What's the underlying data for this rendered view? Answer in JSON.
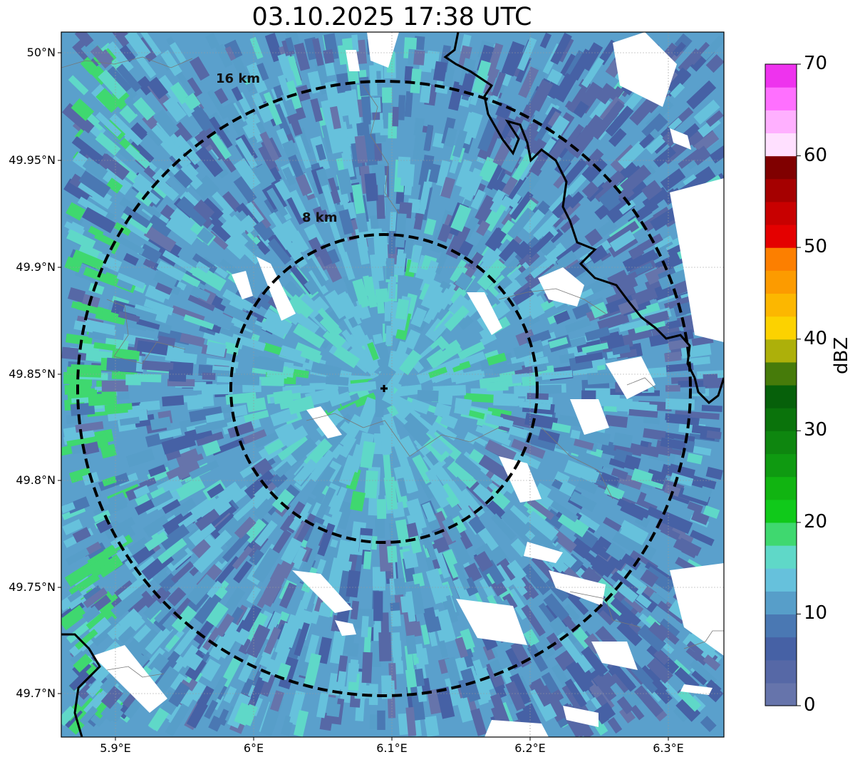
{
  "title": "03.10.2025 17:38 UTC",
  "map": {
    "y_ticks": [
      "50°N",
      "49.95°N",
      "49.9°N",
      "49.85°N",
      "49.8°N",
      "49.75°N",
      "49.7°N"
    ],
    "x_ticks": [
      "5.9°E",
      "6°E",
      "6.1°E",
      "6.2°E",
      "6.3°E"
    ],
    "lon_range": [
      5.86,
      6.34
    ],
    "lat_range": [
      49.68,
      50.01
    ],
    "radar_site": {
      "lon": 6.1,
      "lat": 49.843
    },
    "range_rings": [
      {
        "label": "8 km",
        "radius_km": 8
      },
      {
        "label": "16 km",
        "radius_km": 16
      }
    ]
  },
  "colorbar": {
    "label": "dBZ",
    "ticks": [
      "0",
      "10",
      "20",
      "30",
      "40",
      "50",
      "60",
      "70"
    ],
    "range": [
      0,
      70
    ],
    "colors": [
      "#6674ab",
      "#5668a6",
      "#4661a5",
      "#4a78b3",
      "#579ec9",
      "#66c1dc",
      "#5fd8c8",
      "#3fd86f",
      "#10c91a",
      "#11b411",
      "#0f9a11",
      "#0e860f",
      "#0a730b",
      "#06600a",
      "#467b0a",
      "#adb00a",
      "#fcd200",
      "#fcb700",
      "#fc9b00",
      "#fc7f00",
      "#e40000",
      "#c80000",
      "#a50000",
      "#800000",
      "#ffe0ff",
      "#ffb0ff",
      "#ff70ff",
      "#ee33ee"
    ]
  }
}
